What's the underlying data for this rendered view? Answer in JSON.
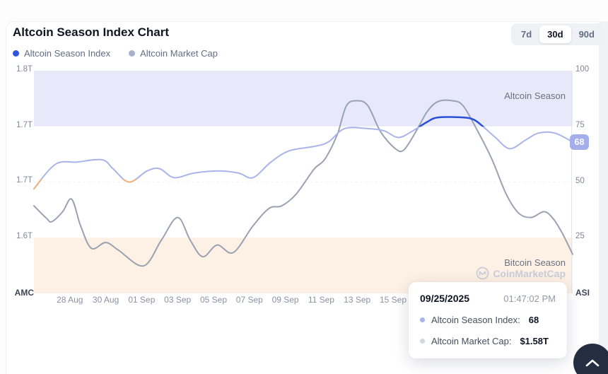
{
  "header": {
    "title": "Altcoin Season Index Chart",
    "range_buttons": [
      {
        "label": "7d",
        "active": false
      },
      {
        "label": "30d",
        "active": true
      },
      {
        "label": "90d",
        "active": false
      }
    ]
  },
  "legend": [
    {
      "label": "Altcoin Season Index",
      "color": "#2f55de"
    },
    {
      "label": "Altcoin Market Cap",
      "color": "#a8b1c7"
    }
  ],
  "zones": {
    "altcoin_label": "Altcoin Season",
    "bitcoin_label": "Bitcoin Season",
    "watermark": "CoinMarketCap"
  },
  "current_badge": {
    "value": "68",
    "color": "#a3aeea"
  },
  "tooltip": {
    "date": "09/25/2025",
    "time": "01:47:02 PM",
    "rows": [
      {
        "label": "Altcoin Season Index:",
        "value": "68",
        "dot": "#a9b4ea"
      },
      {
        "label": "Altcoin Market Cap:",
        "value": "$1.58T",
        "dot": "#d3d7e0"
      }
    ]
  },
  "colors": {
    "asi_line": "#a9b4ea",
    "asi_line_altseason": "#2b50d8",
    "asi_line_low": "#f2b27c",
    "amc_line": "#9aa2b2",
    "band_altcoin": "#e7e9fb",
    "band_bitcoin": "#fdf0e4",
    "gridline": "#eaecf1",
    "axis_line": "#e3e6eb"
  },
  "chart_data": {
    "type": "line",
    "title": "Altcoin Season Index Chart",
    "x_axis": {
      "days": 30,
      "tick_labels": [
        {
          "label": "28 Aug",
          "day": 2
        },
        {
          "label": "30 Aug",
          "day": 4
        },
        {
          "label": "01 Sep",
          "day": 6
        },
        {
          "label": "03 Sep",
          "day": 8
        },
        {
          "label": "05 Sep",
          "day": 10
        },
        {
          "label": "07 Sep",
          "day": 12
        },
        {
          "label": "09 Sep",
          "day": 14
        },
        {
          "label": "11 Sep",
          "day": 16
        },
        {
          "label": "13 Sep",
          "day": 18
        },
        {
          "label": "15 Sep",
          "day": 20
        }
      ]
    },
    "y_right": {
      "title": "ASI",
      "range": [
        0,
        100
      ],
      "ticks": [
        {
          "label": "100",
          "value": 100
        },
        {
          "label": "75",
          "value": 75
        },
        {
          "label": "50",
          "value": 50
        },
        {
          "label": "25",
          "value": 25
        }
      ]
    },
    "y_left": {
      "title": "AMC",
      "range_trillions": [
        1.533,
        1.8
      ],
      "ticks": [
        {
          "label": "1.8T",
          "value": 1.8
        },
        {
          "label": "1.7T",
          "value": 1.733
        },
        {
          "label": "1.7T",
          "value": 1.667
        },
        {
          "label": "1.6T",
          "value": 1.6
        }
      ]
    },
    "bands": [
      {
        "name": "Altcoin Season",
        "above": 75,
        "color": "#e7e9fb"
      },
      {
        "name": "Bitcoin Season",
        "below": 25,
        "color": "#fdf0e4"
      }
    ],
    "midline": 50,
    "series": [
      {
        "name": "Altcoin Season Index",
        "axis": "right",
        "color": "#a9b4ea",
        "highlight_above_75_color": "#2b50d8",
        "highlight_below_50_color": "#f2b27c",
        "points": [
          [
            0,
            47
          ],
          [
            1.2,
            58
          ],
          [
            2.4,
            59
          ],
          [
            3.8,
            60
          ],
          [
            4.4,
            56
          ],
          [
            5.3,
            50
          ],
          [
            6.3,
            55
          ],
          [
            7,
            56
          ],
          [
            7.8,
            52
          ],
          [
            8.9,
            54
          ],
          [
            10.3,
            55
          ],
          [
            11.4,
            54
          ],
          [
            12.2,
            52
          ],
          [
            13.2,
            59
          ],
          [
            14.2,
            64
          ],
          [
            15.6,
            66
          ],
          [
            16.4,
            68
          ],
          [
            17.3,
            74
          ],
          [
            18.6,
            74
          ],
          [
            19.5,
            73
          ],
          [
            20.3,
            70
          ],
          [
            21.1,
            73
          ],
          [
            21.9,
            77
          ],
          [
            22.5,
            79
          ],
          [
            23.9,
            79
          ],
          [
            24.5,
            78
          ],
          [
            25,
            75
          ],
          [
            25.7,
            70
          ],
          [
            26.5,
            65
          ],
          [
            27.4,
            69
          ],
          [
            28.1,
            72
          ],
          [
            29,
            72
          ],
          [
            30,
            68
          ]
        ]
      },
      {
        "name": "Altcoin Market Cap",
        "axis": "left",
        "color": "#9aa2b2",
        "points": [
          [
            0,
            1.638
          ],
          [
            0.7,
            1.623
          ],
          [
            1,
            1.619
          ],
          [
            1.6,
            1.631
          ],
          [
            2.1,
            1.646
          ],
          [
            2.6,
            1.614
          ],
          [
            3.2,
            1.587
          ],
          [
            4,
            1.594
          ],
          [
            4.7,
            1.585
          ],
          [
            6.1,
            1.566
          ],
          [
            7.1,
            1.597
          ],
          [
            8,
            1.624
          ],
          [
            8.7,
            1.597
          ],
          [
            9.4,
            1.577
          ],
          [
            10.2,
            1.591
          ],
          [
            11.1,
            1.582
          ],
          [
            12.2,
            1.614
          ],
          [
            13.1,
            1.635
          ],
          [
            13.8,
            1.638
          ],
          [
            14.6,
            1.652
          ],
          [
            15.6,
            1.682
          ],
          [
            16.2,
            1.694
          ],
          [
            16.9,
            1.724
          ],
          [
            17.4,
            1.758
          ],
          [
            18,
            1.764
          ],
          [
            18.6,
            1.758
          ],
          [
            19.3,
            1.727
          ],
          [
            20.1,
            1.707
          ],
          [
            20.6,
            1.705
          ],
          [
            21.3,
            1.728
          ],
          [
            21.9,
            1.751
          ],
          [
            22.5,
            1.763
          ],
          [
            23.3,
            1.764
          ],
          [
            23.9,
            1.758
          ],
          [
            24.7,
            1.728
          ],
          [
            25.5,
            1.694
          ],
          [
            26.3,
            1.652
          ],
          [
            27,
            1.629
          ],
          [
            27.7,
            1.624
          ],
          [
            28.4,
            1.631
          ],
          [
            28.9,
            1.623
          ],
          [
            29.4,
            1.606
          ],
          [
            30,
            1.58
          ]
        ]
      }
    ]
  }
}
